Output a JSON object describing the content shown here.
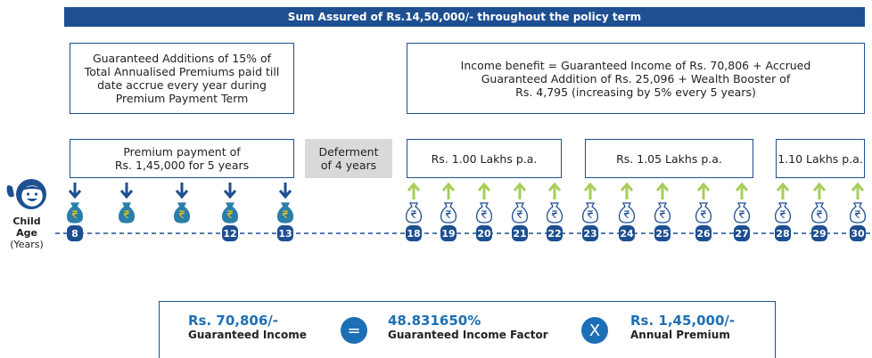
{
  "banner": "Sum Assured of Rs.14,50,000/- throughout the policy term",
  "guaranteed_additions_note": {
    "lines": [
      "Guaranteed Additions of 15% of",
      "Total Annualised Premiums paid till",
      "date accrue every year during",
      "Premium Payment Term"
    ]
  },
  "income_benefit_note": {
    "lines": [
      "Income benefit = Guaranteed Income of Rs. 70,806 + Accrued",
      "Guaranteed Addition of Rs. 25,096 + Wealth Booster of",
      "Rs. 4,795 (increasing by 5% every 5 years)"
    ]
  },
  "premium_box": {
    "lines": [
      "Premium payment of",
      "Rs. 1,45,000 for 5 years"
    ]
  },
  "deferment_box": {
    "lines": [
      "Deferment",
      "of 4 years"
    ]
  },
  "income_boxes": [
    "Rs. 1.00 Lakhs p.a.",
    "Rs. 1.05 Lakhs p.a.",
    "1.10 Lakhs p.a."
  ],
  "age_label": {
    "lines": [
      "Child",
      "Age",
      "(Years)"
    ]
  },
  "timeline": {
    "premium_ages": [
      8,
      12,
      13
    ],
    "income_ages": [
      18,
      19,
      20,
      21,
      22,
      23,
      24,
      25,
      26,
      27,
      28,
      29,
      30
    ]
  },
  "formula": {
    "income": "Rs. 70,806/-",
    "income_label": "Guaranteed Income",
    "equals": "=",
    "factor": "48.831650%",
    "factor_label": "Guaranteed Income Factor",
    "times": "X",
    "premium": "Rs. 1,45,000/-",
    "premium_label": "Annual Premium"
  }
}
